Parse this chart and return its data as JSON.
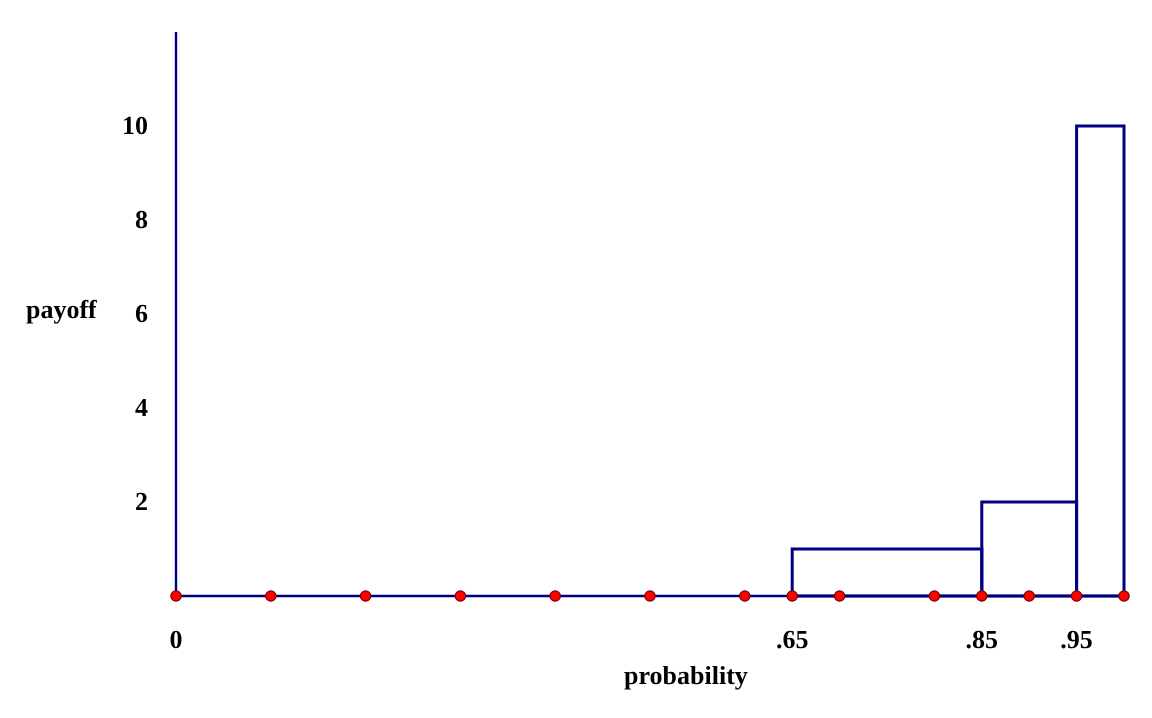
{
  "chart_data": {
    "type": "histogram",
    "xlabel": "probability",
    "ylabel": "payoff",
    "bins": [
      0.65,
      0.85,
      0.95,
      1
    ],
    "values": [
      1,
      2,
      10
    ],
    "color": "#000080",
    "series": [
      {
        "type": "scatter",
        "x": [
          0,
          0.1,
          0.2,
          0.3,
          0.4,
          0.5,
          0.6,
          0.65,
          0.7,
          0.8,
          0.85,
          0.9,
          0.95,
          1
        ],
        "values": [
          0,
          0,
          0,
          0,
          0,
          0,
          0,
          0,
          0,
          0,
          0,
          0,
          0,
          0
        ],
        "color": "#ff0000"
      }
    ],
    "marker": "circle",
    "xlim": [
      0,
      1
    ],
    "xticks": [
      {
        "value": 0,
        "label": "0"
      },
      {
        "value": 0.65,
        "label": ".65"
      },
      {
        "value": 0.85,
        "label": ".85"
      },
      {
        "value": 0.95,
        "label": ".95"
      }
    ],
    "ylim": [
      0,
      12
    ],
    "yticks": [
      {
        "value": 2,
        "label": "2"
      },
      {
        "value": 4,
        "label": "4"
      },
      {
        "value": 6,
        "label": "6"
      },
      {
        "value": 8,
        "label": "8"
      },
      {
        "value": 10,
        "label": "10"
      }
    ],
    "grid": false
  }
}
